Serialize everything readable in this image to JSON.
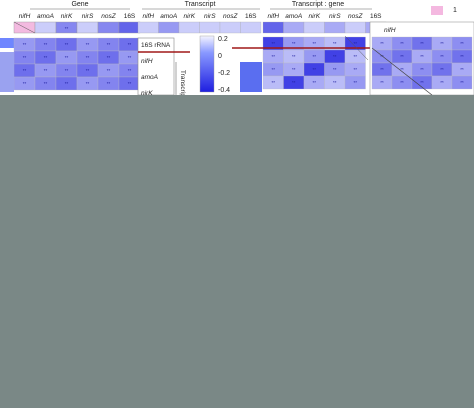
{
  "colors": {
    "background_lower": "#7a8886",
    "scale_positive": "#1e1ee0",
    "scale_negative": "#f0a8d8",
    "divider_line": "#a01818",
    "significance_text": "#2020a0"
  },
  "chart_data": [
    {
      "type": "heatmap",
      "title": "Gene",
      "columns": [
        "nifH",
        "amoA",
        "nirK",
        "nirS",
        "nosZ",
        "16S"
      ],
      "top_row_values": [
        -0.3,
        0.1,
        0.3,
        0.1,
        0.3,
        0.4
      ],
      "marks": [
        "",
        "",
        "**",
        "",
        "",
        ""
      ],
      "body_marks": "**",
      "lower_triangle": true
    },
    {
      "type": "heatmap",
      "title": "Transcript",
      "columns": [
        "nifH",
        "amoA",
        "nirK",
        "nirS",
        "nosZ",
        "16S"
      ],
      "top_row_values": [
        0.1,
        0.1,
        0.1,
        0.1,
        0.1,
        0.1
      ],
      "row_labels": [
        "16S rRNA",
        "nifH",
        "amoA",
        "nirK"
      ],
      "side_label": "Transcript",
      "colorbar_ticks": [
        "0.2",
        "0",
        "-0.2",
        "-0.4"
      ]
    },
    {
      "type": "heatmap",
      "title": "Transcript : gene",
      "columns": [
        "nifH",
        "amoA",
        "nirK",
        "nirS",
        "nosZ",
        "16S"
      ],
      "top_row_values": [
        0.4,
        0.2,
        0.1,
        0.2,
        0.1,
        0.2
      ],
      "marks": [
        "**",
        "**",
        "**",
        "**",
        "**",
        ""
      ],
      "body_marks": "**"
    },
    {
      "type": "heatmap",
      "row_labels": [
        "nifH"
      ],
      "marks": [
        "**",
        "**",
        "**",
        "**"
      ],
      "legend_value": "1"
    }
  ]
}
